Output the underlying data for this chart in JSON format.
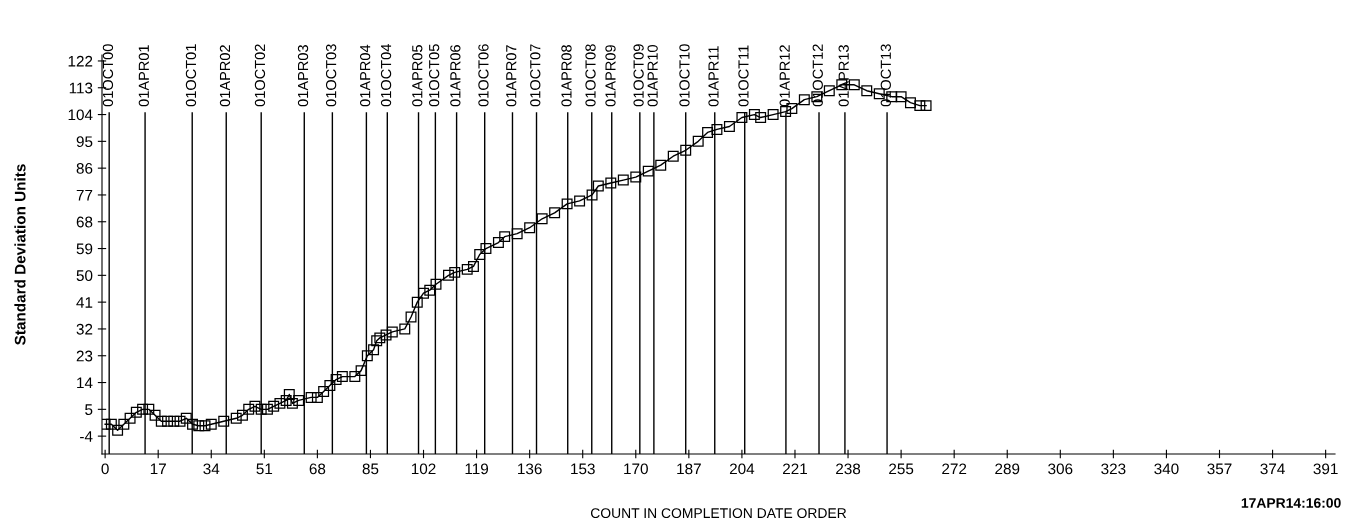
{
  "chart_data": {
    "type": "line",
    "xlabel": "COUNT IN COMPLETION DATE ORDER",
    "ylabel": "Standard Deviation Units",
    "annotations": [
      "17APR14:16:00"
    ],
    "marker": "square",
    "line_style": "solid",
    "grid": false,
    "xlim": [
      -1,
      394
    ],
    "ylim": [
      -10,
      124
    ],
    "xticks": [
      0,
      17,
      34,
      51,
      68,
      85,
      102,
      119,
      136,
      153,
      170,
      187,
      204,
      221,
      238,
      255,
      272,
      289,
      306,
      323,
      340,
      357,
      374,
      391
    ],
    "yticks": [
      -4,
      5,
      14,
      23,
      32,
      41,
      50,
      59,
      68,
      77,
      86,
      95,
      104,
      113,
      122
    ],
    "series": [
      {
        "color": "#000000",
        "x": [
          0,
          2,
          4,
          6,
          8,
          10,
          12,
          14,
          16,
          18,
          20,
          22,
          24,
          26,
          28,
          30,
          32,
          34,
          38,
          42,
          44,
          46,
          48,
          50,
          52,
          54,
          56,
          58,
          59,
          60,
          62,
          66,
          68,
          70,
          72,
          74,
          76,
          80,
          82,
          84,
          86,
          87,
          88,
          90,
          92,
          96,
          98,
          100,
          102,
          104,
          106,
          110,
          112,
          116,
          118,
          120,
          122,
          126,
          128,
          132,
          136,
          140,
          144,
          148,
          152,
          156,
          158,
          162,
          166,
          170,
          174,
          178,
          182,
          186,
          190,
          193,
          196,
          200,
          204,
          208,
          210,
          214,
          218,
          220,
          224,
          228,
          232,
          236,
          240,
          244,
          248,
          252,
          255,
          258,
          261,
          263
        ],
        "values": [
          0,
          0,
          -2,
          0,
          2,
          4,
          5,
          5,
          3,
          1,
          1,
          1,
          1,
          2,
          0,
          -0.5,
          -0.5,
          0,
          1,
          2,
          3,
          5,
          6,
          5,
          5,
          6,
          7,
          8,
          10,
          7,
          8,
          9,
          9,
          11,
          13,
          15,
          16,
          16,
          18,
          23,
          25,
          28,
          29,
          30,
          31,
          32,
          36,
          41,
          44,
          45,
          47,
          50,
          51,
          52,
          53,
          57,
          59,
          61,
          63,
          64,
          66,
          69,
          71,
          74,
          75,
          77,
          80,
          81,
          82,
          83,
          85,
          87,
          90,
          92,
          95,
          98,
          99,
          100,
          103,
          104,
          103,
          104,
          105,
          106,
          109,
          110,
          112,
          114,
          114,
          112,
          111,
          110,
          110,
          108,
          107,
          107
        ]
      }
    ],
    "ref_lines": [
      {
        "axis": "x",
        "value": 1.3,
        "label": "01OCT00"
      },
      {
        "axis": "x",
        "value": 12.8,
        "label": "01APR01"
      },
      {
        "axis": "x",
        "value": 27.9,
        "label": "01OCT01"
      },
      {
        "axis": "x",
        "value": 38.8,
        "label": "01APR02"
      },
      {
        "axis": "x",
        "value": 50,
        "label": "01OCT02"
      },
      {
        "axis": "x",
        "value": 63.8,
        "label": "01APR03"
      },
      {
        "axis": "x",
        "value": 72.8,
        "label": "01OCT03"
      },
      {
        "axis": "x",
        "value": 83.7,
        "label": "01APR04"
      },
      {
        "axis": "x",
        "value": 90.4,
        "label": "01OCT04"
      },
      {
        "axis": "x",
        "value": 100.4,
        "label": "01APR05"
      },
      {
        "axis": "x",
        "value": 105.8,
        "label": "01OCT05"
      },
      {
        "axis": "x",
        "value": 112.6,
        "label": "01APR06"
      },
      {
        "axis": "x",
        "value": 121.6,
        "label": "01OCT06"
      },
      {
        "axis": "x",
        "value": 130.5,
        "label": "01APR07"
      },
      {
        "axis": "x",
        "value": 138.2,
        "label": "01OCT07"
      },
      {
        "axis": "x",
        "value": 148.2,
        "label": "01APR08"
      },
      {
        "axis": "x",
        "value": 155.9,
        "label": "01OCT08"
      },
      {
        "axis": "x",
        "value": 162.3,
        "label": "01APR09"
      },
      {
        "axis": "x",
        "value": 171.3,
        "label": "01OCT09"
      },
      {
        "axis": "x",
        "value": 175.8,
        "label": "01APR10"
      },
      {
        "axis": "x",
        "value": 186,
        "label": "01OCT10"
      },
      {
        "axis": "x",
        "value": 195.3,
        "label": "01APR11"
      },
      {
        "axis": "x",
        "value": 204.9,
        "label": "01OCT11"
      },
      {
        "axis": "x",
        "value": 218.1,
        "label": "01APR12"
      },
      {
        "axis": "x",
        "value": 228.7,
        "label": "01OCT12"
      },
      {
        "axis": "x",
        "value": 237,
        "label": "01APR13"
      },
      {
        "axis": "x",
        "value": 250.5,
        "label": "01OCT13"
      }
    ]
  }
}
